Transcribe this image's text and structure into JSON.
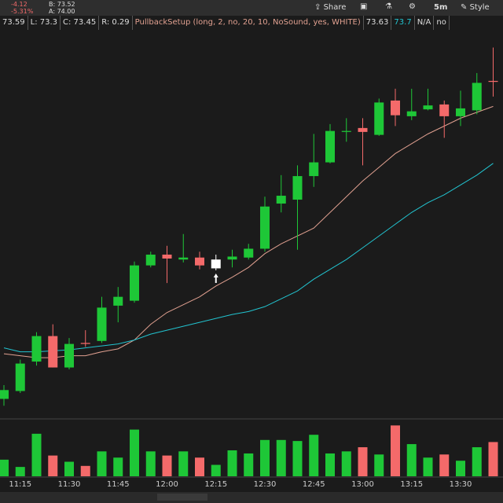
{
  "header": {
    "change": "-4.12",
    "change_pct": "-5.31%",
    "bid": "B: 73.52",
    "ask": "A: 74.00",
    "buttons": [
      "Share",
      "5m",
      "Style"
    ]
  },
  "study_bar": [
    "73.59",
    "L: 73.3",
    "C: 73.45",
    "R: 0.29",
    "PullbackSetup (long, 2, no, 20, 10, NoSound, yes, WHITE)",
    "73.63",
    "73.7",
    "N/A",
    "no"
  ],
  "chart_data": {
    "type": "candlestick",
    "categories": [
      null,
      "11:15",
      null,
      null,
      "11:30",
      null,
      null,
      "11:45",
      null,
      null,
      "12:00",
      null,
      null,
      "12:15",
      null,
      null,
      "12:30",
      null,
      null,
      "12:45",
      null,
      null,
      "13:00",
      null,
      null,
      "13:15",
      null,
      null,
      "13:30",
      null,
      null
    ],
    "open": [
      70.21,
      70.29,
      70.59,
      70.85,
      70.53,
      70.78,
      70.8,
      71.16,
      71.21,
      71.57,
      71.68,
      71.63,
      71.65,
      71.54,
      71.63,
      71.65,
      71.74,
      72.2,
      72.24,
      72.48,
      72.62,
      72.93,
      72.97,
      72.9,
      73.25,
      73.09,
      73.16,
      73.21,
      73.09,
      73.15,
      73.45
    ],
    "high": [
      70.35,
      70.61,
      70.89,
      70.97,
      70.83,
      70.91,
      71.25,
      71.35,
      71.61,
      71.71,
      71.77,
      71.89,
      71.71,
      71.68,
      71.73,
      71.79,
      72.27,
      72.49,
      72.59,
      72.91,
      73.01,
      73.07,
      73.07,
      73.27,
      73.37,
      73.37,
      73.37,
      73.25,
      73.35,
      73.53,
      73.79
    ],
    "low": [
      70.14,
      70.27,
      70.55,
      70.53,
      70.51,
      70.74,
      70.78,
      70.99,
      71.19,
      71.55,
      71.39,
      71.6,
      71.53,
      71.52,
      71.55,
      71.63,
      71.71,
      72.11,
      71.73,
      72.37,
      72.61,
      72.83,
      72.59,
      72.89,
      72.99,
      73.05,
      73.15,
      72.87,
      72.99,
      73.11,
      73.29
    ],
    "close": [
      70.3,
      70.57,
      70.85,
      70.53,
      70.77,
      70.77,
      71.14,
      71.25,
      71.57,
      71.68,
      71.64,
      71.65,
      71.57,
      71.63,
      71.66,
      71.74,
      72.17,
      72.28,
      72.48,
      72.62,
      72.94,
      72.94,
      72.93,
      73.23,
      73.1,
      73.14,
      73.2,
      73.09,
      73.17,
      73.43,
      73.44
    ],
    "volume": [
      16,
      9,
      41,
      20,
      14,
      10,
      24,
      18,
      45,
      24,
      20,
      24,
      18,
      11,
      25,
      22,
      35,
      35,
      34,
      40,
      22,
      24,
      28,
      21,
      49,
      31,
      18,
      21,
      15,
      28,
      33
    ],
    "moving_averages": [
      {
        "color": "#e0a090",
        "values": [
          70.67,
          70.65,
          70.63,
          70.63,
          70.65,
          70.65,
          70.69,
          70.72,
          70.81,
          70.97,
          71.09,
          71.17,
          71.25,
          71.36,
          71.45,
          71.55,
          71.69,
          71.79,
          71.87,
          71.95,
          72.11,
          72.27,
          72.43,
          72.57,
          72.71,
          72.81,
          72.91,
          72.99,
          73.07,
          73.13,
          73.19
        ]
      },
      {
        "color": "#22c4d0",
        "values": [
          70.73,
          70.69,
          70.69,
          70.7,
          70.71,
          70.73,
          70.75,
          70.77,
          70.81,
          70.87,
          70.91,
          70.95,
          70.99,
          71.03,
          71.07,
          71.1,
          71.15,
          71.23,
          71.31,
          71.43,
          71.53,
          71.63,
          71.75,
          71.87,
          71.99,
          72.11,
          72.21,
          72.29,
          72.39,
          72.49,
          72.61
        ]
      }
    ],
    "ylim": [
      70.03,
      73.97
    ],
    "vlim": [
      0,
      50
    ],
    "up_color": "#1ec737",
    "down_color": "#f46a6a",
    "signal_color": "#ffffff",
    "signal_bar": 13
  }
}
